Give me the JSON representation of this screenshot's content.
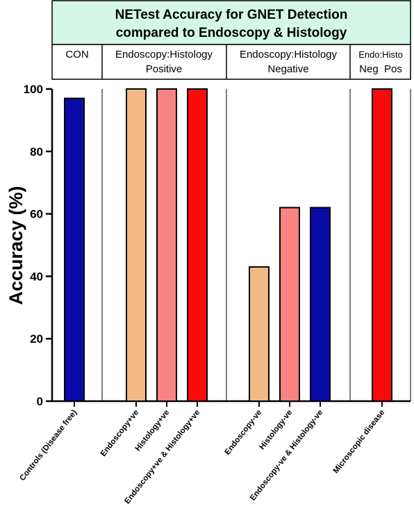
{
  "chart_data": {
    "type": "bar",
    "title_lines": [
      "NETest Accuracy for GNET Detection",
      "compared to Endoscopy & Histology"
    ],
    "header_groups": [
      {
        "lines": [
          "CON"
        ]
      },
      {
        "lines": [
          "Endoscopy:Histology",
          "Positive"
        ]
      },
      {
        "lines": [
          "Endoscopy:Histology",
          "Negative"
        ]
      },
      {
        "lines": [
          "Endo:Histo",
          "Neg  Pos"
        ]
      }
    ],
    "ylabel": "Accuracy (%)",
    "ylim": [
      0,
      100
    ],
    "yticks": [
      0,
      20,
      40,
      60,
      80,
      100
    ],
    "grid": false,
    "categories": [
      "Controls (Disease free)",
      "Endoscopy+ve",
      "Histology+ve",
      "Endoscopy+ve & Histology+ve",
      "Endoscopy-ve",
      "Histology-ve",
      "Endoscopy-ve & Histology-ve",
      "Microscopic disease"
    ],
    "values": [
      97,
      100,
      100,
      100,
      43,
      62,
      62,
      100
    ],
    "bar_colors": [
      "#0a0aa8",
      "#f2b984",
      "#fa8482",
      "#fa0a0a",
      "#f2b984",
      "#fa8482",
      "#0a0aa8",
      "#fa0a0a"
    ],
    "header_color": "#d4f7e7"
  }
}
